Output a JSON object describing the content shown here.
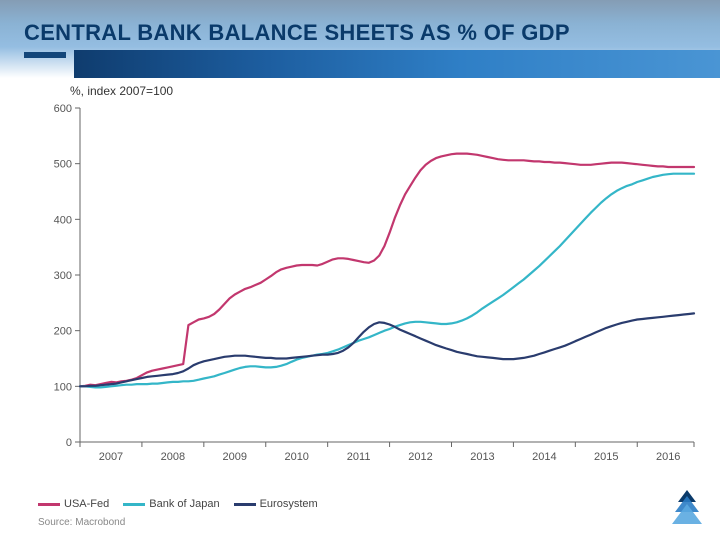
{
  "title": "CENTRAL BANK BALANCE SHEETS AS % OF GDP",
  "subtitle": "%, index 2007=100",
  "source": "Source: Macrobond",
  "title_color": "#0a3a6a",
  "title_fontsize": 22,
  "subtitle_fontsize": 12,
  "chart": {
    "type": "line",
    "background_color": "#ffffff",
    "ylim": [
      0,
      600
    ],
    "ytick_step": 100,
    "yticks": [
      0,
      100,
      200,
      300,
      400,
      500,
      600
    ],
    "x_categories": [
      "2007",
      "2008",
      "2009",
      "2010",
      "2011",
      "2012",
      "2013",
      "2014",
      "2015",
      "2016"
    ],
    "x_range_points": 120,
    "axis_color": "#666666",
    "grid_color": "#cccccc",
    "line_width": 2.2,
    "series": [
      {
        "name": "USA-Fed",
        "color": "#c2376e",
        "data": [
          100,
          101,
          103,
          102,
          104,
          106,
          108,
          107,
          109,
          110,
          112,
          115,
          120,
          125,
          128,
          130,
          132,
          134,
          136,
          138,
          140,
          210,
          215,
          220,
          222,
          225,
          230,
          238,
          248,
          258,
          265,
          270,
          275,
          278,
          282,
          286,
          292,
          298,
          305,
          310,
          313,
          315,
          317,
          318,
          318,
          318,
          317,
          320,
          324,
          328,
          330,
          330,
          329,
          327,
          325,
          323,
          322,
          326,
          335,
          352,
          376,
          402,
          425,
          445,
          460,
          475,
          488,
          498,
          505,
          510,
          513,
          515,
          517,
          518,
          518,
          518,
          517,
          516,
          514,
          512,
          510,
          508,
          507,
          506,
          506,
          506,
          506,
          505,
          504,
          504,
          503,
          503,
          502,
          502,
          501,
          500,
          499,
          498,
          498,
          498,
          499,
          500,
          501,
          502,
          502,
          502,
          501,
          500,
          499,
          498,
          497,
          496,
          495,
          495,
          494,
          494,
          494,
          494,
          494,
          494
        ]
      },
      {
        "name": "Bank of Japan",
        "color": "#34b6c8",
        "data": [
          100,
          100,
          99,
          98,
          98,
          99,
          100,
          101,
          102,
          103,
          103,
          104,
          104,
          104,
          105,
          105,
          106,
          107,
          108,
          108,
          109,
          109,
          110,
          112,
          114,
          116,
          118,
          121,
          124,
          127,
          130,
          133,
          135,
          136,
          136,
          135,
          134,
          134,
          135,
          137,
          140,
          144,
          148,
          151,
          153,
          155,
          157,
          158,
          160,
          163,
          166,
          170,
          174,
          178,
          182,
          185,
          188,
          192,
          196,
          200,
          203,
          207,
          210,
          213,
          215,
          216,
          216,
          215,
          214,
          213,
          212,
          212,
          213,
          215,
          218,
          222,
          227,
          233,
          240,
          246,
          252,
          258,
          264,
          271,
          278,
          285,
          292,
          300,
          308,
          316,
          325,
          334,
          343,
          352,
          362,
          372,
          382,
          392,
          402,
          412,
          421,
          430,
          438,
          445,
          451,
          456,
          460,
          463,
          467,
          470,
          473,
          476,
          478,
          480,
          481,
          482,
          482,
          482,
          482,
          482
        ]
      },
      {
        "name": "Eurosystem",
        "color": "#2a3c6e",
        "data": [
          100,
          100,
          101,
          101,
          102,
          103,
          104,
          105,
          107,
          109,
          111,
          113,
          115,
          117,
          118,
          119,
          120,
          121,
          122,
          124,
          127,
          132,
          138,
          142,
          145,
          147,
          149,
          151,
          153,
          154,
          155,
          155,
          155,
          154,
          153,
          152,
          151,
          151,
          150,
          150,
          150,
          151,
          152,
          153,
          154,
          155,
          156,
          157,
          157,
          158,
          160,
          164,
          170,
          178,
          188,
          198,
          206,
          212,
          215,
          214,
          211,
          207,
          202,
          198,
          194,
          190,
          186,
          182,
          178,
          174,
          171,
          168,
          165,
          162,
          160,
          158,
          156,
          154,
          153,
          152,
          151,
          150,
          149,
          149,
          149,
          150,
          151,
          153,
          155,
          158,
          161,
          164,
          167,
          170,
          173,
          177,
          181,
          185,
          189,
          193,
          197,
          201,
          205,
          208,
          211,
          214,
          216,
          218,
          220,
          221,
          222,
          223,
          224,
          225,
          226,
          227,
          228,
          229,
          230,
          231
        ]
      }
    ],
    "legend_labels": [
      "USA-Fed",
      "Bank of Japan",
      "Eurosystem"
    ]
  },
  "corner_logo_colors": [
    "#0a3a6a",
    "#2a7cc4",
    "#5aa8e0"
  ]
}
